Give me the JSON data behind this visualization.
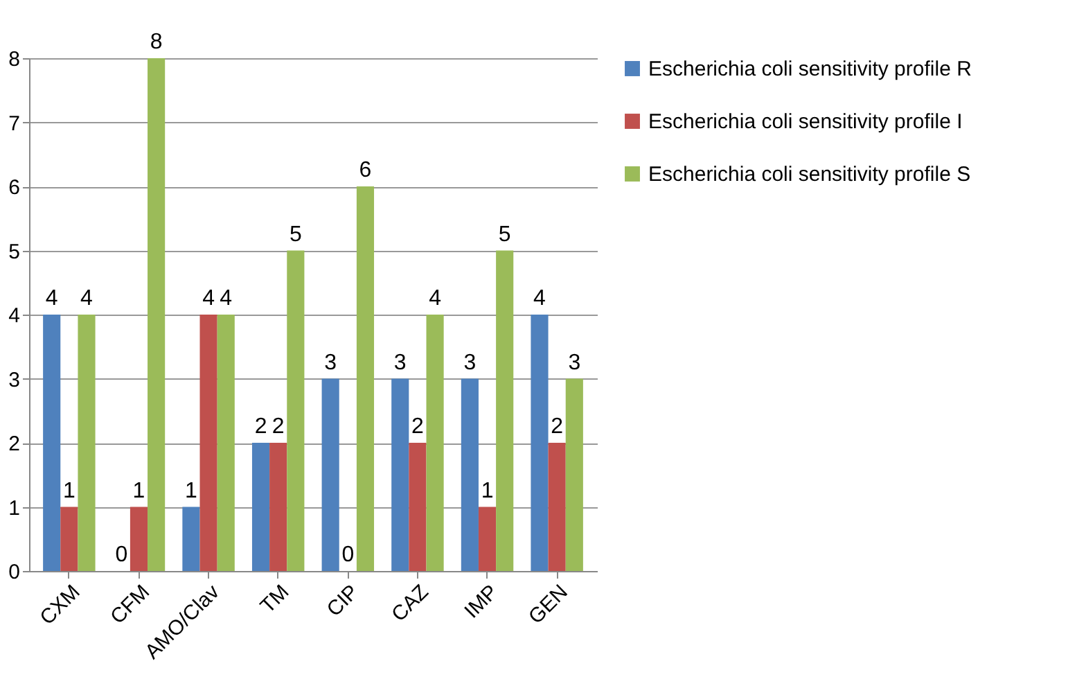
{
  "chart_data": {
    "type": "bar",
    "categories": [
      "CXM",
      "CFM",
      "AMO/Clav",
      "TM",
      "CIP",
      "CAZ",
      "IMP",
      "GEN"
    ],
    "series": [
      {
        "name": "Escherichia coli sensitivity profile R",
        "color": "#4f81bd",
        "values": [
          4,
          0,
          1,
          2,
          3,
          3,
          3,
          4
        ]
      },
      {
        "name": "Escherichia coli sensitivity profile I",
        "color": "#c0504d",
        "values": [
          1,
          1,
          4,
          2,
          0,
          2,
          1,
          2
        ]
      },
      {
        "name": "Escherichia coli sensitivity profile S",
        "color": "#9bbb59",
        "values": [
          4,
          8,
          4,
          5,
          6,
          4,
          5,
          3
        ]
      }
    ],
    "ylim": [
      0,
      8
    ],
    "yticks": [
      0,
      1,
      2,
      3,
      4,
      5,
      6,
      7,
      8
    ],
    "grid": "y",
    "legend": "right",
    "data_labels": true
  }
}
